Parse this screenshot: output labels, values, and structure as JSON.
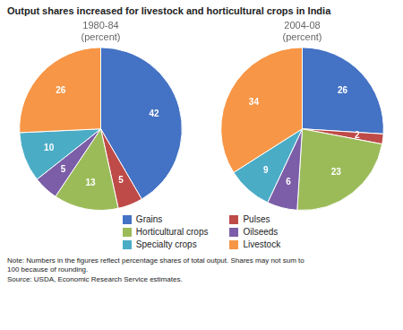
{
  "title": "Output shares increased for livestock and horticultural crops in India",
  "annotations": [
    "Note: Numbers in the figures reflect percentage shares of total output. Shares may not sum to\n100 because of rounding.\nSource: USDA, Economic Research Service estimates."
  ],
  "legend": "bottom",
  "chart_data": [
    {
      "type": "pie",
      "title": "1980-84\n(percent)",
      "categories": [
        "Grains",
        "Pulses",
        "Horticultural crops",
        "Oilseeds",
        "Specialty crops",
        "Livestock"
      ],
      "values": [
        42,
        5,
        13,
        5,
        10,
        26
      ],
      "colors": [
        "#4472C4",
        "#BE4B48",
        "#9BBB59",
        "#7B5EA7",
        "#4BACC6",
        "#F79646"
      ],
      "data_labels": true
    },
    {
      "type": "pie",
      "title": "2004-08\n(percent)",
      "categories": [
        "Grains",
        "Pulses",
        "Horticultural crops",
        "Oilseeds",
        "Specialty crops",
        "Livestock"
      ],
      "values": [
        26,
        2,
        23,
        6,
        9,
        34
      ],
      "colors": [
        "#4472C4",
        "#BE4B48",
        "#9BBB59",
        "#7B5EA7",
        "#4BACC6",
        "#F79646"
      ],
      "data_labels": true
    }
  ]
}
